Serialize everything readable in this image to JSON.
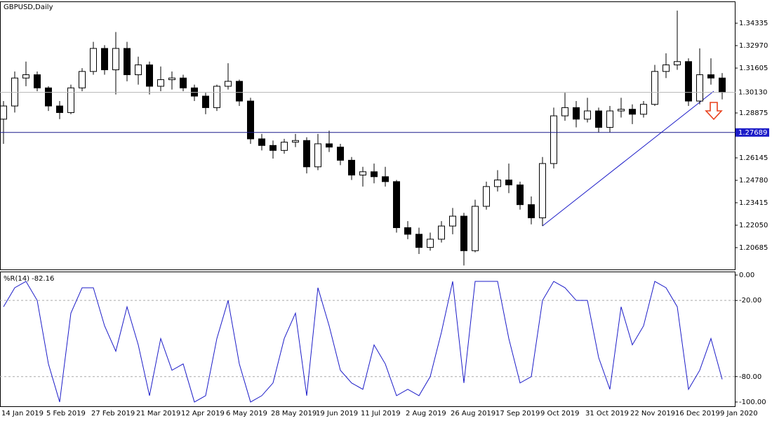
{
  "chart_data": [
    {
      "type": "candlestick",
      "title": "GBPUSD,Daily",
      "categories": [
        "14 Jan 2019",
        null,
        null,
        null,
        "5 Feb 2019",
        null,
        null,
        null,
        "27 Feb 2019",
        null,
        null,
        null,
        "21 Mar 2019",
        null,
        null,
        null,
        "12 Apr 2019",
        null,
        null,
        null,
        "6 May 2019",
        null,
        null,
        null,
        "28 May 2019",
        null,
        null,
        null,
        "19 Jun 2019",
        null,
        null,
        null,
        "11 Jul 2019",
        null,
        null,
        null,
        "2 Aug 2019",
        null,
        null,
        null,
        "26 Aug 2019",
        null,
        null,
        null,
        "17 Sep 2019",
        null,
        null,
        null,
        "9 Oct 2019",
        null,
        null,
        null,
        "31 Oct 2019",
        null,
        null,
        null,
        "22 Nov 2019",
        null,
        null,
        null,
        "16 Dec 2019",
        null,
        null,
        null,
        "9 Jan 2020"
      ],
      "open": [
        1.285,
        1.293,
        1.31,
        1.312,
        1.304,
        1.293,
        1.289,
        1.304,
        1.314,
        1.328,
        1.315,
        1.328,
        1.312,
        1.318,
        1.305,
        1.309,
        1.31,
        1.304,
        1.299,
        1.292,
        1.305,
        1.308,
        1.296,
        1.273,
        1.269,
        1.266,
        1.271,
        1.272,
        1.256,
        1.27,
        1.268,
        1.26,
        1.251,
        1.253,
        1.25,
        1.247,
        1.219,
        1.215,
        1.207,
        1.212,
        1.22,
        1.226,
        1.205,
        1.232,
        1.244,
        1.248,
        1.245,
        1.233,
        1.225,
        1.258,
        1.287,
        1.292,
        1.285,
        1.29,
        1.28,
        1.29,
        1.291,
        1.288,
        1.294,
        1.314,
        1.318,
        1.32,
        1.296,
        1.312,
        1.31
      ],
      "high": [
        1.296,
        1.314,
        1.32,
        1.314,
        1.305,
        1.296,
        1.306,
        1.316,
        1.332,
        1.33,
        1.338,
        1.332,
        1.323,
        1.32,
        1.317,
        1.314,
        1.312,
        1.306,
        1.301,
        1.306,
        1.319,
        1.309,
        1.298,
        1.276,
        1.272,
        1.273,
        1.276,
        1.274,
        1.276,
        1.278,
        1.27,
        1.262,
        1.256,
        1.258,
        1.256,
        1.248,
        1.223,
        1.219,
        1.216,
        1.223,
        1.231,
        1.228,
        1.236,
        1.247,
        1.254,
        1.258,
        1.247,
        1.238,
        1.262,
        1.292,
        1.301,
        1.296,
        1.298,
        1.292,
        1.293,
        1.298,
        1.294,
        1.296,
        1.318,
        1.325,
        1.351,
        1.322,
        1.328,
        1.322,
        1.313
      ],
      "low": [
        1.27,
        1.289,
        1.305,
        1.302,
        1.29,
        1.285,
        1.288,
        1.302,
        1.312,
        1.312,
        1.3,
        1.308,
        1.306,
        1.3,
        1.302,
        1.303,
        1.302,
        1.296,
        1.288,
        1.29,
        1.303,
        1.293,
        1.27,
        1.266,
        1.261,
        1.264,
        1.268,
        1.252,
        1.254,
        1.265,
        1.257,
        1.248,
        1.244,
        1.246,
        1.244,
        1.216,
        1.212,
        1.203,
        1.205,
        1.21,
        1.215,
        1.196,
        1.204,
        1.23,
        1.241,
        1.24,
        1.23,
        1.221,
        1.22,
        1.255,
        1.284,
        1.28,
        1.283,
        1.277,
        1.277,
        1.286,
        1.282,
        1.286,
        1.293,
        1.31,
        1.315,
        1.293,
        1.294,
        1.306,
        1.297
      ],
      "close": [
        1.293,
        1.31,
        1.312,
        1.304,
        1.293,
        1.289,
        1.304,
        1.314,
        1.328,
        1.315,
        1.328,
        1.312,
        1.318,
        1.305,
        1.309,
        1.31,
        1.304,
        1.299,
        1.292,
        1.305,
        1.308,
        1.296,
        1.273,
        1.269,
        1.266,
        1.271,
        1.272,
        1.256,
        1.27,
        1.268,
        1.26,
        1.251,
        1.253,
        1.25,
        1.247,
        1.219,
        1.215,
        1.207,
        1.212,
        1.22,
        1.226,
        1.205,
        1.232,
        1.244,
        1.248,
        1.245,
        1.233,
        1.225,
        1.258,
        1.287,
        1.292,
        1.285,
        1.29,
        1.28,
        1.29,
        1.291,
        1.288,
        1.294,
        1.314,
        1.318,
        1.32,
        1.296,
        1.312,
        1.31,
        1.3013
      ],
      "ylim": [
        1.1936,
        1.3566
      ],
      "yticks": [
        1.34335,
        {
          "value": 1.3297,
          "label": "1.32970"
        },
        1.31605,
        1.28875,
        1.26145,
        {
          "value": 1.2478,
          "label": "1.24780"
        },
        1.23415,
        {
          "value": 1.2205,
          "label": "1.22050"
        },
        1.20685
      ],
      "bid_line": {
        "value": 1.3013,
        "label": "1.30130"
      },
      "level_line": 1.27689
    },
    {
      "type": "line",
      "title": "%R(14) -82.16",
      "series": [
        {
          "name": "%R(14)",
          "color": "#1c1cc8",
          "values": [
            -25,
            -10,
            -5,
            -20,
            -70,
            -100,
            -30,
            -10,
            -10,
            -40,
            -60,
            -25,
            -55,
            -95,
            -50,
            -75,
            -70,
            -100,
            -95,
            -50,
            -20,
            -70,
            -100,
            -95,
            -85,
            -50,
            -30,
            -95,
            -10,
            -40,
            -75,
            -85,
            -90,
            -55,
            -70,
            -95,
            -90,
            -95,
            -80,
            -45,
            -5,
            -85,
            -5,
            -5,
            -5,
            -50,
            -85,
            -80,
            -20,
            -5,
            -10,
            -20,
            -20,
            -65,
            -90,
            -25,
            -55,
            -40,
            -5,
            -10,
            -25,
            -90,
            -75,
            -50,
            -82.16
          ]
        }
      ],
      "ylim": [
        -103.9,
        2.2
      ],
      "yticks": [
        {
          "value": 0,
          "label": "0.00"
        },
        {
          "value": -20,
          "label": "-20.00"
        },
        {
          "value": -80,
          "label": "-80.00"
        },
        {
          "value": -100,
          "label": "-100.00"
        }
      ],
      "dashed_levels": [
        -20,
        -80
      ]
    }
  ]
}
